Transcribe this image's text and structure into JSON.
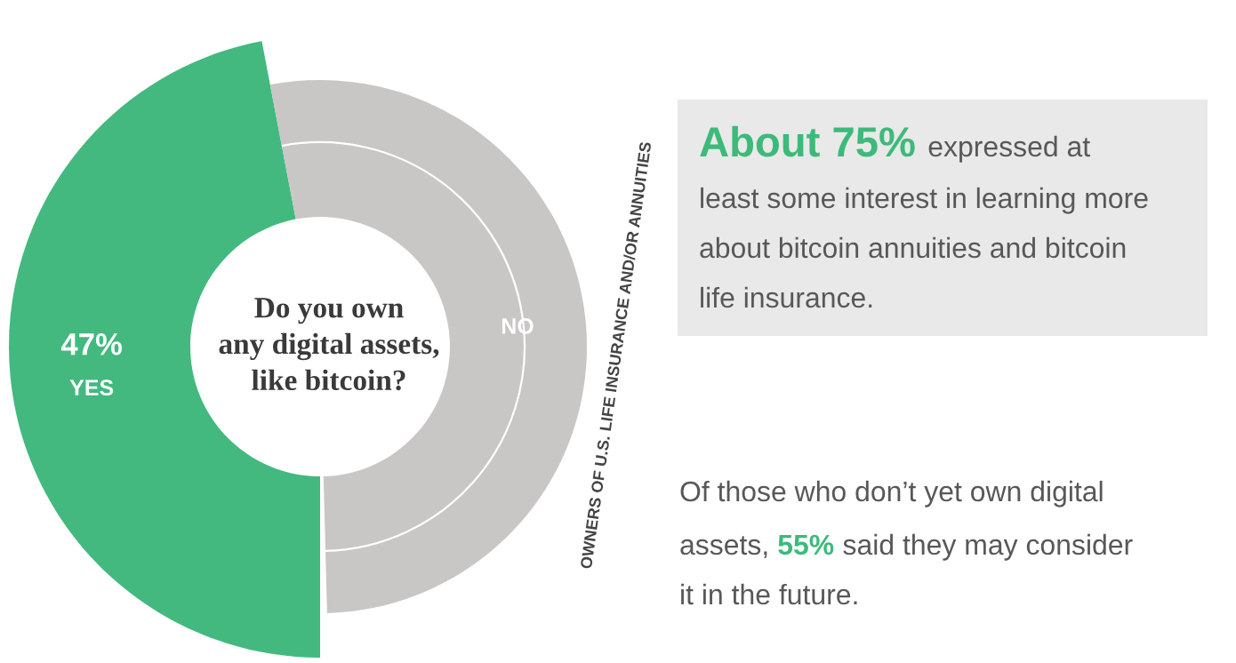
{
  "chart_data": {
    "type": "donut",
    "title": "Do you own\nany digital assets,\nlike bitcoin?",
    "categories": [
      "YES",
      "NO"
    ],
    "values": [
      47,
      53
    ],
    "colors": [
      "#43b97f",
      "#c8c7c5"
    ],
    "value_labels": [
      "47%",
      null
    ],
    "annotations": [
      "About 75% expressed at\nleast some interest in learning more\nabout bitcoin annuities and bitcoin\nlife insurance.",
      "Of those who don’t yet own digital\nassets, 55% said they may consider\nit in the future.",
      "OWNERS OF U.S. LIFE INSURANCE AND/OR ANNUITIES"
    ]
  }
}
